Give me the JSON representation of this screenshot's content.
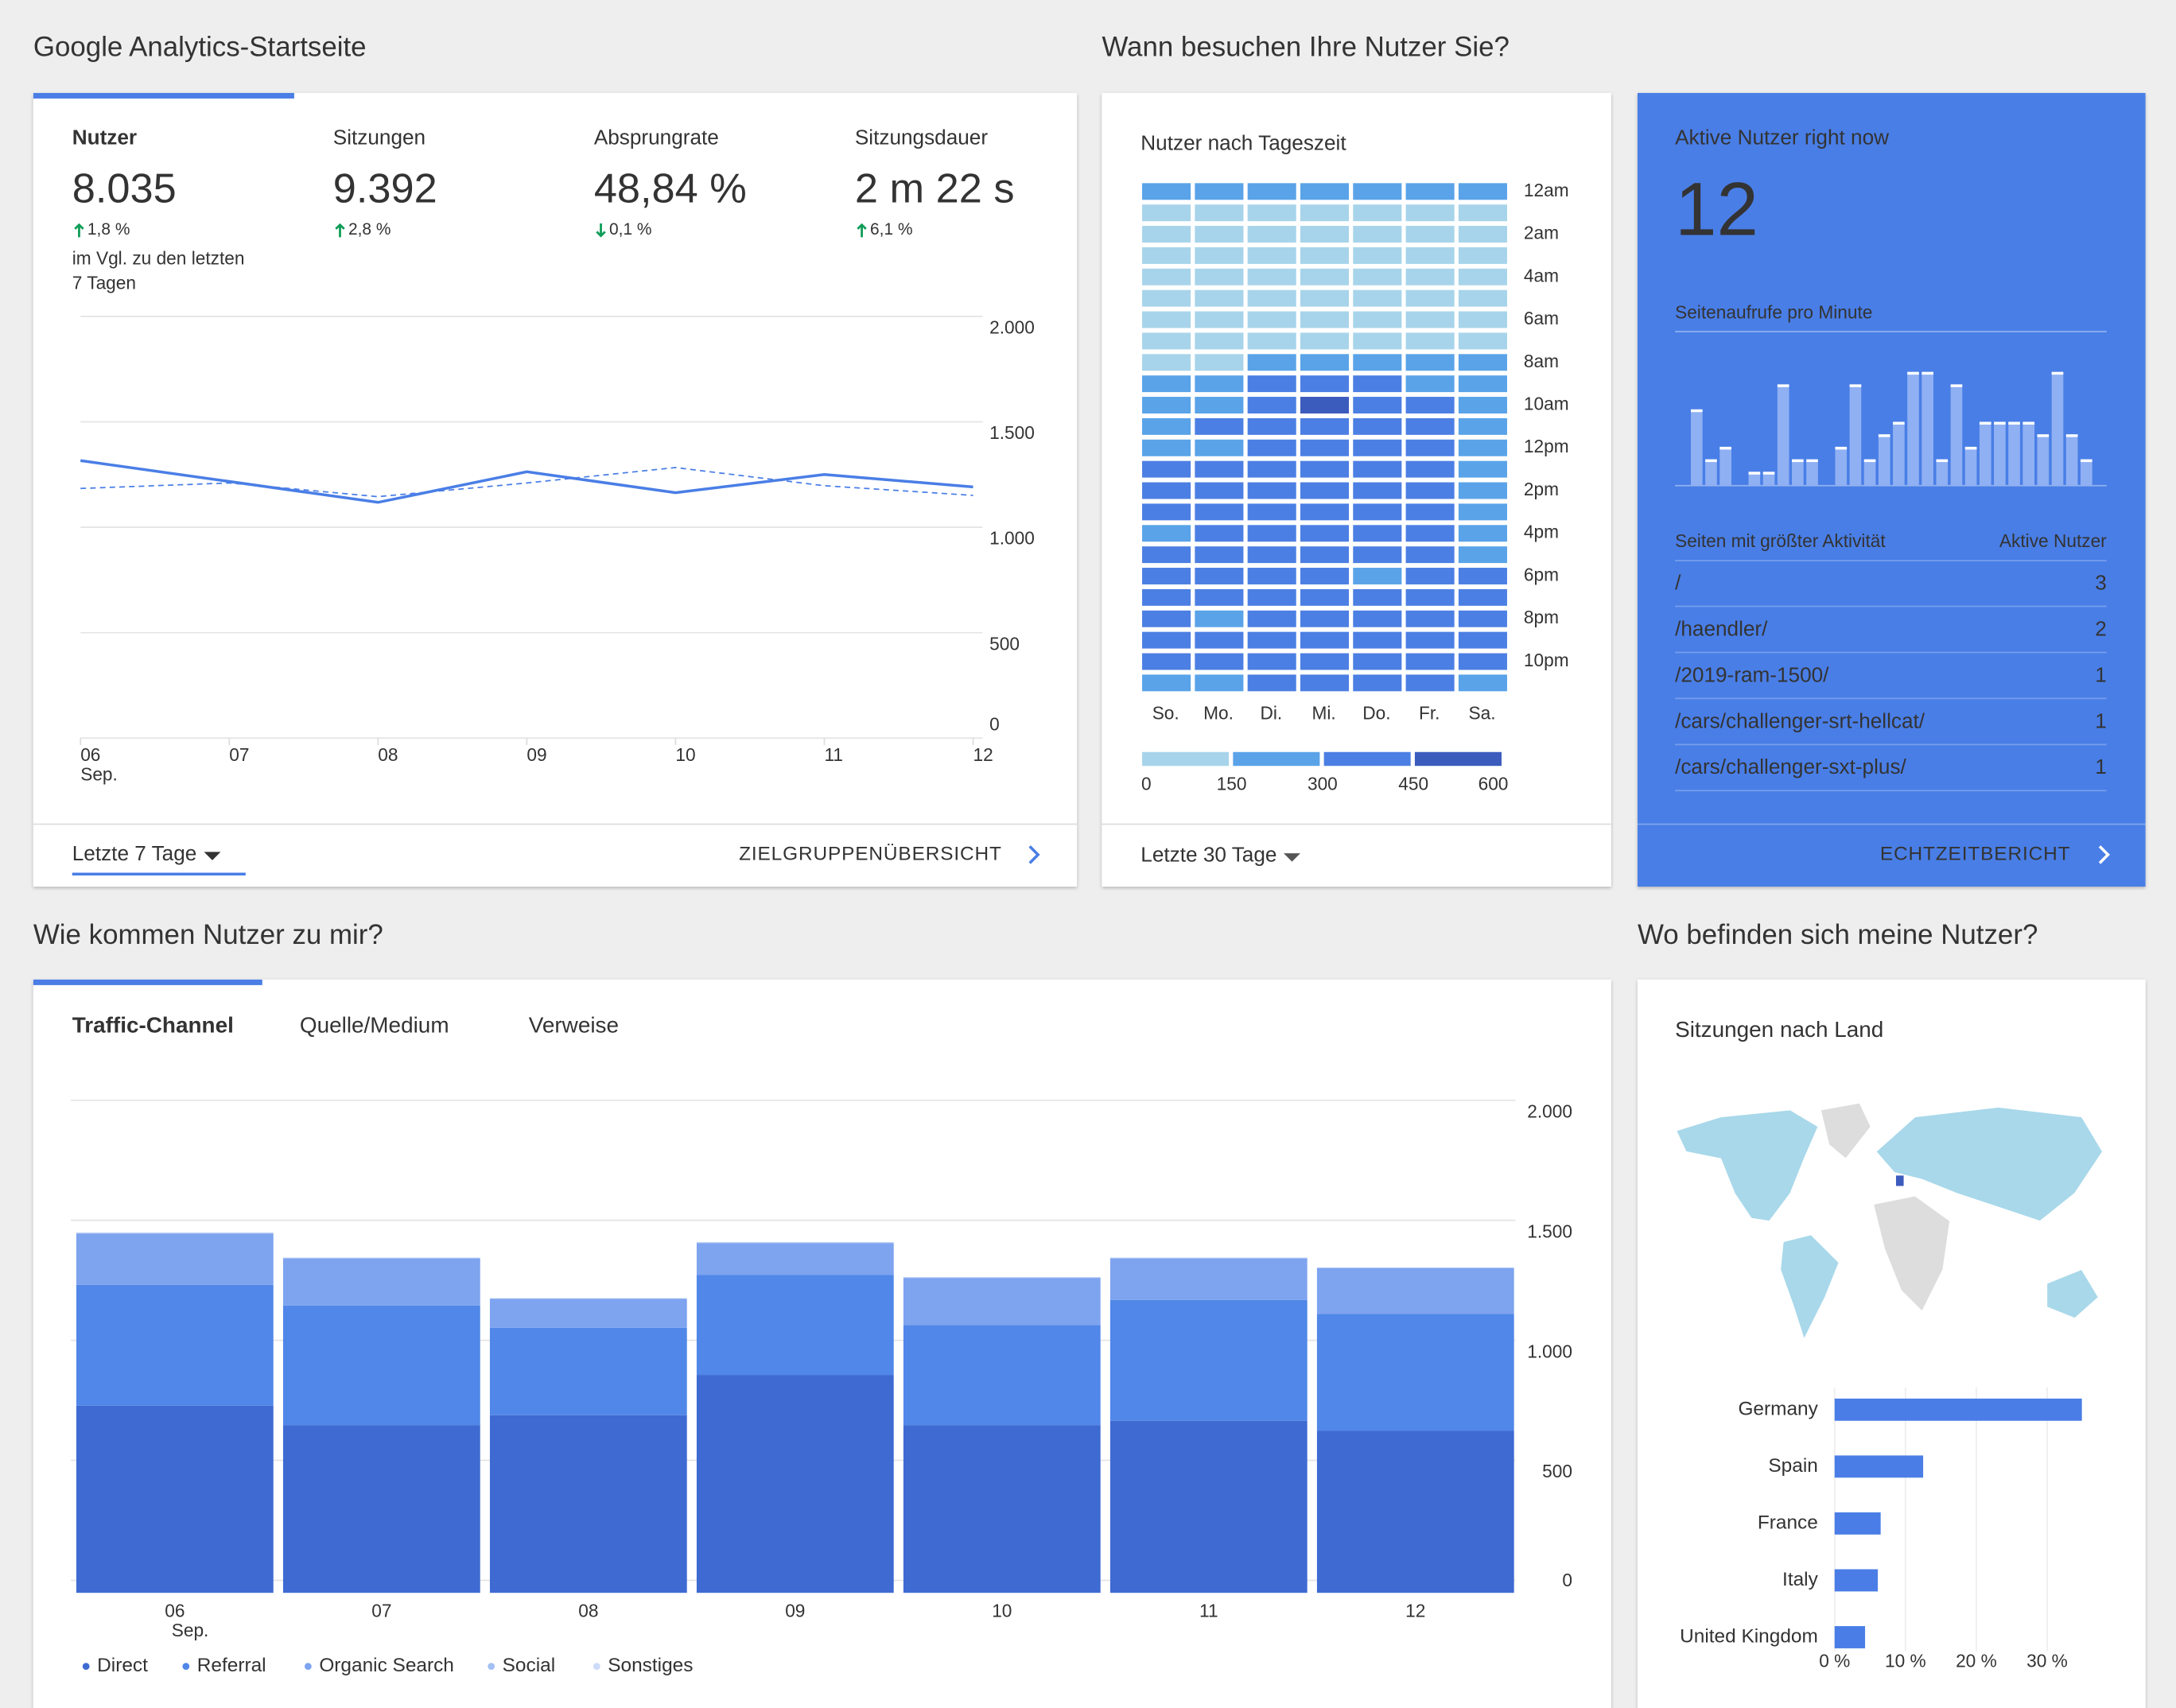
{
  "headings": [
    "Google Analytics-Startseite",
    "Wann besuchen Ihre Nutzer Sie?",
    "Wie kommen Nutzer zu mir?",
    "Wo befinden sich meine Nutzer?"
  ],
  "overview": {
    "tabs": [
      {
        "label": "Nutzer",
        "value": "8.035",
        "change": "1,8 %",
        "direction": "up"
      },
      {
        "label": "Sitzungen",
        "value": "9.392",
        "change": "2,8 %",
        "direction": "up"
      },
      {
        "label": "Absprungrate",
        "value": "48,84 %",
        "change": "0,1 %",
        "direction": "down"
      },
      {
        "label": "Sitzungsdauer",
        "value": "2 m 22 s",
        "change": "6,1 %",
        "direction": "up"
      }
    ],
    "comparison": [
      "im Vgl. zu den letzten",
      "7 Tagen"
    ],
    "chart": {
      "type": "line",
      "categories": [
        "06",
        "07",
        "08",
        "09",
        "10",
        "11",
        "12"
      ],
      "month": "Sep.",
      "series": [
        {
          "style": "solid",
          "color": "#4a7ee6",
          "values": [
            1316,
            1217,
            1118,
            1263,
            1164,
            1250,
            1191
          ]
        },
        {
          "style": "dashed",
          "color": "#4a7ee6",
          "values": [
            1184,
            1210,
            1145,
            1210,
            1283,
            1197,
            1151
          ]
        }
      ],
      "ylim": [
        0,
        2000
      ],
      "yticks": [
        0,
        500,
        {
          "value": 1000,
          "label": "1.000"
        },
        {
          "value": 1500,
          "label": "1.500"
        },
        {
          "value": 2000,
          "label": "2.000"
        }
      ],
      "grid": true
    },
    "date_range": "Letzte 7 Tage",
    "link": "ZIELGRUPPENÜBERSICHT"
  },
  "heatmap": {
    "title": "Nutzer nach Tageszeit",
    "chart": {
      "type": "heatmap",
      "rows": [
        "12am",
        null,
        "2am",
        null,
        "4am",
        null,
        "6am",
        null,
        "8am",
        null,
        "10am",
        null,
        "12pm",
        null,
        "2pm",
        null,
        "4pm",
        null,
        "6pm",
        null,
        "8pm",
        null,
        "10pm",
        null
      ],
      "columns": [
        "So.",
        "Mo.",
        "Di.",
        "Mi.",
        "Do.",
        "Fr.",
        "Sa."
      ],
      "values": [
        [
          200,
          200,
          200,
          200,
          200,
          200,
          200
        ],
        [
          80,
          80,
          80,
          80,
          80,
          80,
          80
        ],
        [
          80,
          80,
          80,
          80,
          80,
          80,
          80
        ],
        [
          80,
          80,
          80,
          80,
          80,
          80,
          80
        ],
        [
          80,
          80,
          80,
          80,
          80,
          80,
          80
        ],
        [
          80,
          80,
          80,
          80,
          80,
          80,
          80
        ],
        [
          90,
          90,
          90,
          90,
          90,
          90,
          90
        ],
        [
          90,
          90,
          90,
          90,
          90,
          90,
          90
        ],
        [
          100,
          100,
          250,
          250,
          250,
          250,
          250
        ],
        [
          250,
          250,
          350,
          380,
          350,
          280,
          250
        ],
        [
          250,
          300,
          420,
          480,
          400,
          350,
          250
        ],
        [
          280,
          350,
          400,
          400,
          380,
          350,
          250
        ],
        [
          300,
          280,
          380,
          400,
          350,
          320,
          250
        ],
        [
          350,
          380,
          400,
          380,
          400,
          350,
          280
        ],
        [
          380,
          400,
          380,
          400,
          380,
          380,
          280
        ],
        [
          350,
          400,
          420,
          400,
          380,
          380,
          250
        ],
        [
          280,
          380,
          400,
          400,
          380,
          380,
          280
        ],
        [
          350,
          380,
          380,
          400,
          350,
          380,
          280
        ],
        [
          350,
          350,
          400,
          380,
          280,
          350,
          350
        ],
        [
          380,
          350,
          380,
          400,
          350,
          380,
          350
        ],
        [
          350,
          250,
          380,
          380,
          350,
          350,
          350
        ],
        [
          350,
          380,
          400,
          380,
          380,
          380,
          350
        ],
        [
          350,
          380,
          400,
          400,
          380,
          380,
          350
        ],
        [
          250,
          280,
          380,
          380,
          350,
          380,
          250
        ]
      ],
      "scale": {
        "ticks": [
          0,
          150,
          300,
          450,
          600
        ],
        "colors": [
          "#a7d4ea",
          "#5aa3e8",
          "#4c7fe3",
          "#3b5bbd"
        ]
      }
    },
    "date_range": "Letzte 30 Tage"
  },
  "realtime": {
    "title": "Aktive Nutzer right now",
    "active": 12,
    "chart": {
      "type": "bar",
      "title": "Seitenaufrufe pro Minute",
      "values": [
        0,
        6,
        2,
        3,
        0,
        1,
        1,
        8,
        2,
        2,
        0,
        3,
        8,
        2,
        4,
        5,
        9,
        9,
        2,
        8,
        3,
        5,
        5,
        5,
        5,
        4,
        9,
        4,
        2,
        0
      ],
      "ylim": [
        0,
        10
      ],
      "color": "#8fb0f3"
    },
    "table": {
      "header": [
        "Seiten mit größter Aktivität",
        "Aktive Nutzer"
      ],
      "rows": [
        [
          "/",
          3
        ],
        [
          "/haendler/",
          2
        ],
        [
          "/2019-ram-1500/",
          1
        ],
        [
          "/cars/challenger-srt-hellcat/",
          1
        ],
        [
          "/cars/challenger-sxt-plus/",
          1
        ]
      ]
    },
    "link": "ECHTZEITBERICHT"
  },
  "traffic": {
    "tabs": [
      "Traffic-Channel",
      "Quelle/Medium",
      "Verweise"
    ],
    "chart": {
      "type": "stacked_bar",
      "categories": [
        "06",
        "07",
        "08",
        "09",
        "10",
        "11",
        "12"
      ],
      "month": "Sep.",
      "series": [
        {
          "name": "Direct",
          "color": "#3e6ad2",
          "values": [
            780,
            699,
            740,
            908,
            699,
            717,
            676
          ]
        },
        {
          "name": "Referral",
          "color": "#5087e8",
          "values": [
            503,
            498,
            364,
            416,
            417,
            503,
            486
          ]
        },
        {
          "name": "Organic Search",
          "color": "#7ea3ef",
          "values": [
            214,
            196,
            121,
            133,
            196,
            173,
            191
          ]
        },
        {
          "name": "Social",
          "color": "#a3c0f4",
          "values": [
            3,
            3,
            2,
            3,
            2,
            3,
            2
          ]
        },
        {
          "name": "Sonstiges",
          "color": "#cddbf9",
          "values": [
            1,
            1,
            1,
            1,
            1,
            1,
            1
          ]
        }
      ],
      "ylim": [
        0,
        2000
      ],
      "yticks": [
        0,
        500,
        {
          "value": 1000,
          "label": "1.000"
        },
        {
          "value": 1500,
          "label": "1.500"
        },
        {
          "value": 2000,
          "label": "2.000"
        }
      ],
      "grid": true
    }
  },
  "geo": {
    "title": "Sitzungen nach Land",
    "chart": {
      "type": "hbar",
      "categories": [
        "Germany",
        "Spain",
        "France",
        "Italy",
        "United Kingdom"
      ],
      "values": [
        34.9,
        12.5,
        6.5,
        6.1,
        4.3
      ],
      "color": "#4a7ee6",
      "xlim": [
        0,
        38
      ],
      "xticks": [
        {
          "value": 0,
          "label": "0 %"
        },
        {
          "value": 10,
          "label": "10 %"
        },
        {
          "value": 20,
          "label": "20 %"
        },
        {
          "value": 30,
          "label": "30 %"
        }
      ],
      "grid": true
    }
  }
}
